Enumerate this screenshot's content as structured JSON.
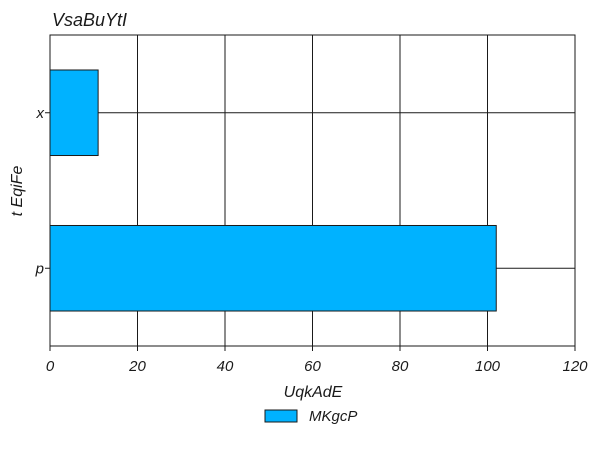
{
  "chart_data": {
    "type": "bar",
    "orientation": "horizontal",
    "title": "VsaBuYtI",
    "xlabel": "UqkAdE",
    "ylabel": "t EqiFe",
    "categories": [
      "p",
      "x"
    ],
    "series": [
      {
        "name": "MKgcP",
        "values": [
          102,
          11
        ],
        "color": "#00b2ff"
      }
    ],
    "xlim": [
      0,
      120
    ],
    "xticks": [
      0,
      20,
      40,
      60,
      80,
      100,
      120
    ],
    "grid": true,
    "legend_position": "bottom-center"
  }
}
